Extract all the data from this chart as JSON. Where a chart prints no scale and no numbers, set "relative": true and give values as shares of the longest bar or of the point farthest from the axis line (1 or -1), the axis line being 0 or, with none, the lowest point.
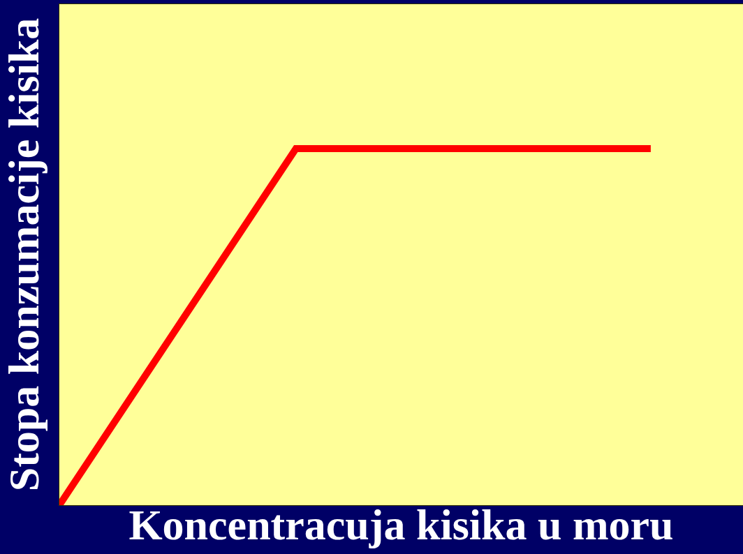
{
  "chart_data": {
    "type": "line",
    "xlabel": "Koncentracuja kisika u moru",
    "ylabel": "Stopa konzumacije kisika",
    "categories": [
      null,
      null,
      null,
      null,
      null,
      null
    ],
    "values": [
      0,
      0.5,
      1,
      1,
      1,
      1
    ],
    "color": "#ff0000",
    "relative": true,
    "marker": "none",
    "line_style": "solid"
  }
}
